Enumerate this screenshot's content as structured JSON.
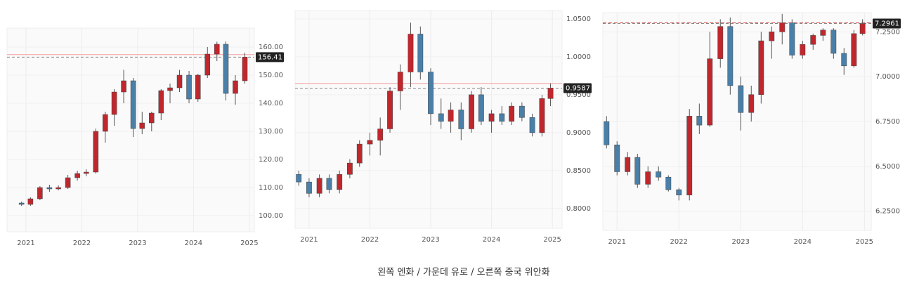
{
  "chart_data": [
    {
      "type": "candlestick",
      "x": [
        2020.92,
        2021.08,
        2021.25,
        2021.42,
        2021.58,
        2021.75,
        2021.92,
        2022.08,
        2022.25,
        2022.42,
        2022.58,
        2022.75,
        2022.92,
        2023.08,
        2023.25,
        2023.42,
        2023.58,
        2023.75,
        2023.92,
        2024.08,
        2024.25,
        2024.42,
        2024.58,
        2024.75,
        2024.92
      ],
      "open": [
        104.5,
        104,
        106,
        110,
        109.5,
        110,
        113.5,
        115,
        115.5,
        130,
        136,
        144,
        148,
        131,
        133,
        136.5,
        144.5,
        145.5,
        150,
        141.5,
        150,
        157.5,
        161,
        143.5,
        148
      ],
      "high": [
        105,
        106.5,
        110.5,
        111,
        110.8,
        114.5,
        116,
        116.5,
        131,
        137,
        145,
        151.9,
        149,
        137,
        137,
        145,
        147,
        151.9,
        151.5,
        150.5,
        160,
        161.9,
        162,
        150,
        158
      ],
      "low": [
        103.5,
        103.5,
        105.5,
        108.5,
        109,
        109.5,
        112.5,
        114,
        115,
        126,
        132,
        140,
        128,
        129,
        130,
        134,
        140,
        144,
        140,
        140.5,
        149,
        155,
        141,
        139.5,
        147
      ],
      "close": [
        104,
        106,
        110,
        109.5,
        110,
        113.5,
        115,
        115.5,
        130,
        136,
        144,
        148,
        131,
        133,
        136.5,
        144.5,
        145.5,
        150,
        141.5,
        150,
        157.5,
        161,
        143.5,
        148,
        156.41
      ],
      "up_color": "#c0272d",
      "down_color": "#4a7fa8",
      "xlim": [
        2020.66,
        2025.09
      ],
      "xticks": [
        2021,
        2022,
        2023,
        2024,
        2025
      ],
      "ylim": [
        94.25,
        166.75
      ],
      "yticks": [
        {
          "value": 100,
          "label": "100.00"
        },
        {
          "value": 110,
          "label": "110.00"
        },
        {
          "value": 120,
          "label": "120.00"
        },
        {
          "value": 130,
          "label": "130.00"
        },
        {
          "value": 140,
          "label": "140.00"
        },
        {
          "value": 150,
          "label": "150.00"
        },
        {
          "value": 160,
          "label": "160.00"
        }
      ],
      "ref_line": {
        "value": 157.3,
        "color": "#f4a0a0"
      },
      "last_price": 156.41
    },
    {
      "type": "candlestick",
      "x": [
        2020.83,
        2021.0,
        2021.17,
        2021.33,
        2021.5,
        2021.67,
        2021.83,
        2022.0,
        2022.17,
        2022.33,
        2022.5,
        2022.67,
        2022.83,
        2023.0,
        2023.17,
        2023.33,
        2023.5,
        2023.67,
        2023.83,
        2024.0,
        2024.17,
        2024.33,
        2024.5,
        2024.67,
        2024.83,
        2024.97
      ],
      "open": [
        0.845,
        0.835,
        0.82,
        0.84,
        0.825,
        0.845,
        0.86,
        0.885,
        0.89,
        0.905,
        0.955,
        0.98,
        1.03,
        0.98,
        0.925,
        0.915,
        0.93,
        0.905,
        0.95,
        0.915,
        0.925,
        0.915,
        0.935,
        0.92,
        0.9,
        0.945
      ],
      "high": [
        0.85,
        0.84,
        0.845,
        0.845,
        0.85,
        0.865,
        0.89,
        0.9,
        0.92,
        0.96,
        0.99,
        1.045,
        1.04,
        0.985,
        0.945,
        0.94,
        0.94,
        0.955,
        0.96,
        0.93,
        0.935,
        0.94,
        0.94,
        0.925,
        0.95,
        0.965
      ],
      "low": [
        0.83,
        0.815,
        0.815,
        0.82,
        0.82,
        0.84,
        0.855,
        0.87,
        0.87,
        0.9,
        0.93,
        0.96,
        0.97,
        0.91,
        0.905,
        0.9,
        0.89,
        0.9,
        0.91,
        0.9,
        0.91,
        0.91,
        0.915,
        0.895,
        0.895,
        0.935
      ],
      "close": [
        0.835,
        0.82,
        0.84,
        0.825,
        0.845,
        0.86,
        0.885,
        0.89,
        0.905,
        0.955,
        0.98,
        1.03,
        0.98,
        0.925,
        0.915,
        0.93,
        0.905,
        0.95,
        0.915,
        0.925,
        0.915,
        0.935,
        0.92,
        0.9,
        0.945,
        0.9587
      ],
      "up_color": "#c0272d",
      "down_color": "#4a7fa8",
      "xlim": [
        2020.77,
        2025.16
      ],
      "xticks": [
        2021,
        2022,
        2023,
        2024,
        2025
      ],
      "ylim": [
        0.774,
        1.061
      ],
      "yticks": [
        {
          "value": 0.8,
          "label": "0.8000"
        },
        {
          "value": 0.85,
          "label": "0.8500"
        },
        {
          "value": 0.9,
          "label": "0.9000"
        },
        {
          "value": 0.95,
          "label": "0.9500"
        },
        {
          "value": 1.0,
          "label": "1.0000"
        },
        {
          "value": 1.05,
          "label": "1.0500"
        }
      ],
      "ref_line": {
        "value": 0.965,
        "color": "#f4a0a0"
      },
      "last_price": 0.9587
    },
    {
      "type": "candlestick",
      "x": [
        2020.83,
        2021.0,
        2021.17,
        2021.33,
        2021.5,
        2021.67,
        2021.83,
        2022.0,
        2022.17,
        2022.33,
        2022.5,
        2022.67,
        2022.83,
        2023.0,
        2023.17,
        2023.33,
        2023.5,
        2023.67,
        2023.83,
        2024.0,
        2024.17,
        2024.33,
        2024.5,
        2024.67,
        2024.83,
        2024.97
      ],
      "open": [
        6.75,
        6.62,
        6.47,
        6.55,
        6.4,
        6.47,
        6.44,
        6.37,
        6.34,
        6.78,
        6.73,
        7.1,
        7.28,
        6.95,
        6.8,
        6.9,
        7.2,
        7.25,
        7.3,
        7.12,
        7.18,
        7.23,
        7.26,
        7.13,
        7.06,
        7.24
      ],
      "high": [
        6.78,
        6.64,
        6.58,
        6.57,
        6.5,
        6.5,
        6.45,
        6.38,
        6.82,
        6.85,
        7.25,
        7.32,
        7.33,
        7.0,
        6.95,
        7.25,
        7.28,
        7.35,
        7.32,
        7.2,
        7.24,
        7.27,
        7.27,
        7.16,
        7.26,
        7.32
      ],
      "low": [
        6.6,
        6.45,
        6.45,
        6.38,
        6.38,
        6.42,
        6.36,
        6.31,
        6.31,
        6.68,
        6.72,
        7.05,
        6.9,
        6.7,
        6.75,
        6.85,
        7.1,
        7.18,
        7.1,
        7.1,
        7.15,
        7.2,
        7.1,
        7.01,
        7.05,
        7.23
      ],
      "close": [
        6.62,
        6.47,
        6.55,
        6.4,
        6.47,
        6.44,
        6.37,
        6.34,
        6.78,
        6.73,
        7.1,
        7.28,
        6.95,
        6.8,
        6.9,
        7.2,
        7.25,
        7.3,
        7.12,
        7.18,
        7.23,
        7.26,
        7.13,
        7.06,
        7.24,
        7.2961
      ],
      "up_color": "#c0272d",
      "down_color": "#4a7fa8",
      "xlim": [
        2020.77,
        2025.11
      ],
      "xticks": [
        2021,
        2022,
        2023,
        2024,
        2025
      ],
      "ylim": [
        6.143,
        7.357
      ],
      "yticks": [
        {
          "value": 6.25,
          "label": "6.2500"
        },
        {
          "value": 6.5,
          "label": "6.5000"
        },
        {
          "value": 6.75,
          "label": "6.7500"
        },
        {
          "value": 7.0,
          "label": "7.0000"
        },
        {
          "value": 7.25,
          "label": "7.2500"
        }
      ],
      "ref_line": {
        "value": 7.3,
        "color": "#d9534f"
      },
      "last_price": 7.2961
    }
  ],
  "caption": "왼쪽 엔화 / 가운데 유로 / 오른쪽 중국 위안화"
}
